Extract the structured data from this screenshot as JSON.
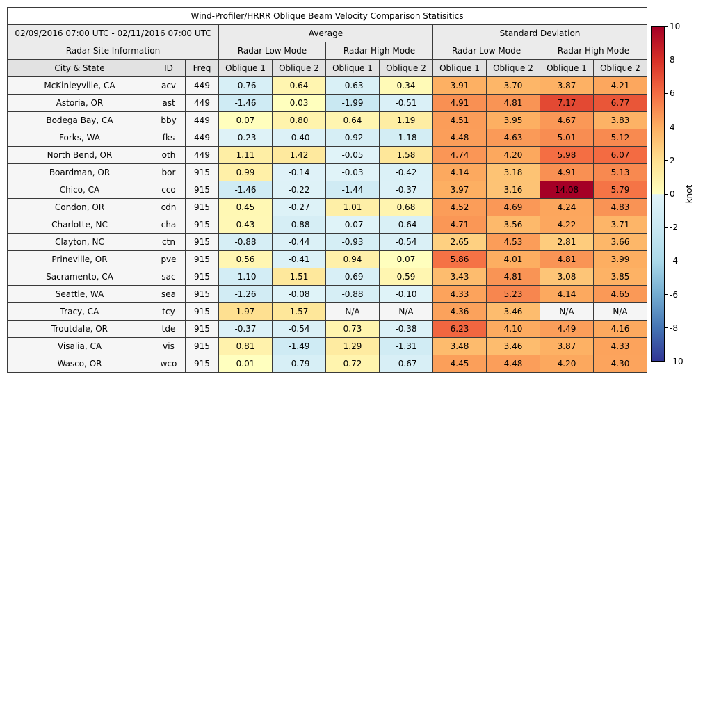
{
  "title": "Wind-Profiler/HRRR Oblique Beam Velocity Comparison Statisitics",
  "header": {
    "date_range": "02/09/2016 07:00 UTC - 02/11/2016 07:00 UTC",
    "group_average": "Average",
    "group_std": "Standard Deviation",
    "site_info": "Radar Site Information",
    "low_mode": "Radar Low Mode",
    "high_mode": "Radar High Mode",
    "col_city": "City & State",
    "col_id": "ID",
    "col_freq": "Freq",
    "oblique1": "Oblique 1",
    "oblique2": "Oblique 2"
  },
  "colors": {
    "na_cell": "#f5f5f5",
    "header_bg": "#ebebeb",
    "column_header_bg": "#e2e2e2",
    "row_header_bg": "#f6f6f6",
    "border": "#3a3a3a"
  },
  "colorbar": {
    "label": "knot",
    "min": -10,
    "max": 10,
    "ticks": [
      10,
      8,
      6,
      4,
      2,
      0,
      -2,
      -4,
      -6,
      -8,
      -10
    ],
    "stops": [
      {
        "v": -10,
        "c": "#313695"
      },
      {
        "v": -8,
        "c": "#4575b4"
      },
      {
        "v": -6,
        "c": "#74add1"
      },
      {
        "v": -4,
        "c": "#abd9e9"
      },
      {
        "v": -2,
        "c": "#c9e8f2"
      },
      {
        "v": -0.02,
        "c": "#e0f3f8"
      },
      {
        "v": 0,
        "c": "#ffffbf"
      },
      {
        "v": 2,
        "c": "#fee090"
      },
      {
        "v": 4,
        "c": "#fdae61"
      },
      {
        "v": 6,
        "c": "#f46d43"
      },
      {
        "v": 8,
        "c": "#d73027"
      },
      {
        "v": 10,
        "c": "#a50026"
      }
    ]
  },
  "chart_data": {
    "type": "heatmap",
    "title": "Wind-Profiler/HRRR Oblique Beam Velocity Comparison Statisitics",
    "unit": "knot",
    "color_range": [
      -10,
      10
    ],
    "colormap": "RdYlBu_r",
    "na_text": "N/A",
    "value_columns": [
      "Average Radar Low Mode Oblique 1",
      "Average Radar Low Mode Oblique 2",
      "Average Radar High Mode Oblique 1",
      "Average Radar High Mode Oblique 2",
      "Standard Deviation Radar Low Mode Oblique 1",
      "Standard Deviation Radar Low Mode Oblique 2",
      "Standard Deviation Radar High Mode Oblique 1",
      "Standard Deviation Radar High Mode Oblique 2"
    ],
    "rows": [
      {
        "city": "McKinleyville, CA",
        "id": "acv",
        "freq": "449",
        "values": [
          "-0.76",
          "0.64",
          "-0.63",
          "0.34",
          "3.91",
          "3.70",
          "3.87",
          "4.21"
        ]
      },
      {
        "city": "Astoria, OR",
        "id": "ast",
        "freq": "449",
        "values": [
          "-1.46",
          "0.03",
          "-1.99",
          "-0.51",
          "4.91",
          "4.81",
          "7.17",
          "6.77"
        ]
      },
      {
        "city": "Bodega Bay, CA",
        "id": "bby",
        "freq": "449",
        "values": [
          "0.07",
          "0.80",
          "0.64",
          "1.19",
          "4.51",
          "3.95",
          "4.67",
          "3.83"
        ]
      },
      {
        "city": "Forks, WA",
        "id": "fks",
        "freq": "449",
        "values": [
          "-0.23",
          "-0.40",
          "-0.92",
          "-1.18",
          "4.48",
          "4.63",
          "5.01",
          "5.12"
        ]
      },
      {
        "city": "North Bend, OR",
        "id": "oth",
        "freq": "449",
        "values": [
          "1.11",
          "1.42",
          "-0.05",
          "1.58",
          "4.74",
          "4.20",
          "5.98",
          "6.07"
        ]
      },
      {
        "city": "Boardman, OR",
        "id": "bor",
        "freq": "915",
        "values": [
          "0.99",
          "-0.14",
          "-0.03",
          "-0.42",
          "4.14",
          "3.18",
          "4.91",
          "5.13"
        ]
      },
      {
        "city": "Chico, CA",
        "id": "cco",
        "freq": "915",
        "values": [
          "-1.46",
          "-0.22",
          "-1.44",
          "-0.37",
          "3.97",
          "3.16",
          "14.08",
          "5.79"
        ]
      },
      {
        "city": "Condon, OR",
        "id": "cdn",
        "freq": "915",
        "values": [
          "0.45",
          "-0.27",
          "1.01",
          "0.68",
          "4.52",
          "4.69",
          "4.24",
          "4.83"
        ]
      },
      {
        "city": "Charlotte, NC",
        "id": "cha",
        "freq": "915",
        "values": [
          "0.43",
          "-0.88",
          "-0.07",
          "-0.64",
          "4.71",
          "3.56",
          "4.22",
          "3.71"
        ]
      },
      {
        "city": "Clayton, NC",
        "id": "ctn",
        "freq": "915",
        "values": [
          "-0.88",
          "-0.44",
          "-0.93",
          "-0.54",
          "2.65",
          "4.53",
          "2.81",
          "3.66"
        ]
      },
      {
        "city": "Prineville, OR",
        "id": "pve",
        "freq": "915",
        "values": [
          "0.56",
          "-0.41",
          "0.94",
          "0.07",
          "5.86",
          "4.01",
          "4.81",
          "3.99"
        ]
      },
      {
        "city": "Sacramento, CA",
        "id": "sac",
        "freq": "915",
        "values": [
          "-1.10",
          "1.51",
          "-0.69",
          "0.59",
          "3.43",
          "4.81",
          "3.08",
          "3.85"
        ]
      },
      {
        "city": "Seattle, WA",
        "id": "sea",
        "freq": "915",
        "values": [
          "-1.26",
          "-0.08",
          "-0.88",
          "-0.10",
          "4.33",
          "5.23",
          "4.14",
          "4.65"
        ]
      },
      {
        "city": "Tracy, CA",
        "id": "tcy",
        "freq": "915",
        "values": [
          "1.97",
          "1.57",
          "N/A",
          "N/A",
          "4.36",
          "3.46",
          "N/A",
          "N/A"
        ]
      },
      {
        "city": "Troutdale, OR",
        "id": "tde",
        "freq": "915",
        "values": [
          "-0.37",
          "-0.54",
          "0.73",
          "-0.38",
          "6.23",
          "4.10",
          "4.49",
          "4.16"
        ]
      },
      {
        "city": "Visalia, CA",
        "id": "vis",
        "freq": "915",
        "values": [
          "0.81",
          "-1.49",
          "1.29",
          "-1.31",
          "3.48",
          "3.46",
          "3.87",
          "4.33"
        ]
      },
      {
        "city": "Wasco, OR",
        "id": "wco",
        "freq": "915",
        "values": [
          "0.01",
          "-0.79",
          "0.72",
          "-0.67",
          "4.45",
          "4.48",
          "4.20",
          "4.30"
        ]
      }
    ]
  }
}
